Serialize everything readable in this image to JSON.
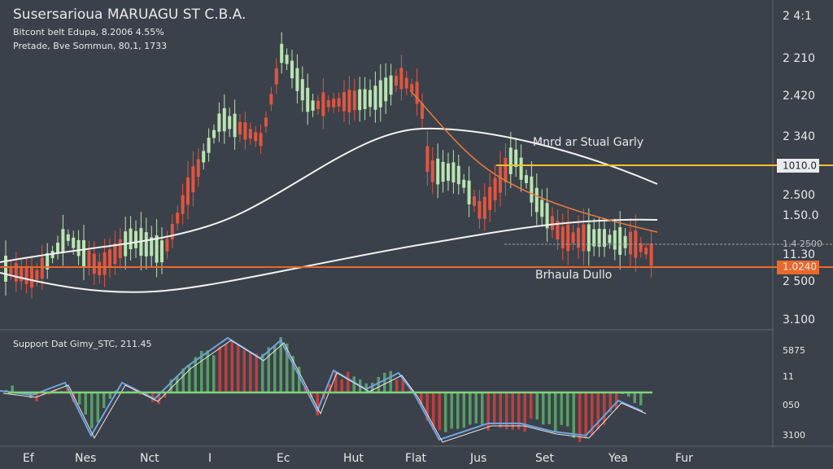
{
  "header": {
    "title": "Susersarioua MARUAGU ST C.B.A.",
    "subtitle_lines": [
      "Bitcont belt Edupa, 8.2006 4.55%",
      "Pretade, Bve Sommun, 80,1, 1733"
    ]
  },
  "price_axis": {
    "labels": [
      "2 4:1",
      "2 210",
      "2.420",
      "2 340",
      "1010.0",
      "2.500",
      "1.50.0",
      "1.4 2500",
      "11.30",
      "1.0240",
      "2 500",
      "3.100"
    ]
  },
  "annotations": [
    "Mnrd ar Stual Garly",
    "Brhaula Dullo"
  ],
  "indicator": {
    "label": "Support Dat Gimy_STC, 211.45",
    "axis_labels": [
      "5875",
      "11",
      "050",
      "3100"
    ]
  },
  "time_axis": {
    "labels": [
      "Ef",
      "Nes",
      "Nct",
      "I",
      "Ec",
      "Hut",
      "Flat",
      "Jus",
      "Set",
      "Yea",
      "Fur"
    ]
  }
}
